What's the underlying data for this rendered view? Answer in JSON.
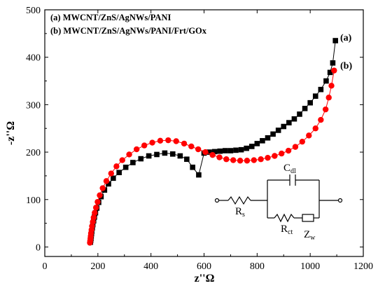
{
  "chart_data": {
    "type": "scatter",
    "xlabel": "z''Ω",
    "ylabel": "-z''Ω",
    "xlim": [
      0,
      1200
    ],
    "ylim": [
      -20,
      500
    ],
    "xticks": [
      "0",
      "200",
      "400",
      "600",
      "800",
      "1000",
      "1200"
    ],
    "yticks": [
      "0",
      "100",
      "200",
      "300",
      "400",
      "500"
    ],
    "legend": {
      "placement": "top-left",
      "entries": [
        "(a) MWCNT/ZnS/AgNWs/PANI",
        "(b) MWCNT/ZnS/AgNWs/PANI/Frt/GOx"
      ]
    },
    "series": [
      {
        "name": "(a)",
        "label": "(a)",
        "color": "#000000",
        "marker": "square",
        "points": [
          [
            172,
            10
          ],
          [
            173,
            14
          ],
          [
            174,
            18
          ],
          [
            175,
            23
          ],
          [
            176,
            28
          ],
          [
            177,
            33
          ],
          [
            179,
            40
          ],
          [
            181,
            47
          ],
          [
            184,
            55
          ],
          [
            187,
            63
          ],
          [
            191,
            72
          ],
          [
            196,
            82
          ],
          [
            203,
            94
          ],
          [
            212,
            106
          ],
          [
            225,
            120
          ],
          [
            240,
            133
          ],
          [
            258,
            145
          ],
          [
            280,
            157
          ],
          [
            305,
            168
          ],
          [
            332,
            178
          ],
          [
            362,
            186
          ],
          [
            392,
            192
          ],
          [
            422,
            195
          ],
          [
            452,
            198
          ],
          [
            482,
            196
          ],
          [
            510,
            192
          ],
          [
            535,
            185
          ],
          [
            557,
            168
          ],
          [
            580,
            152
          ],
          [
            600,
            198
          ],
          [
            620,
            200
          ],
          [
            640,
            201
          ],
          [
            660,
            202
          ],
          [
            680,
            203
          ],
          [
            700,
            203
          ],
          [
            720,
            204
          ],
          [
            740,
            205
          ],
          [
            760,
            208
          ],
          [
            780,
            212
          ],
          [
            800,
            218
          ],
          [
            820,
            224
          ],
          [
            840,
            230
          ],
          [
            860,
            238
          ],
          [
            880,
            246
          ],
          [
            900,
            254
          ],
          [
            920,
            262
          ],
          [
            940,
            270
          ],
          [
            960,
            280
          ],
          [
            980,
            292
          ],
          [
            1000,
            304
          ],
          [
            1020,
            318
          ],
          [
            1040,
            332
          ],
          [
            1060,
            350
          ],
          [
            1075,
            368
          ],
          [
            1085,
            388
          ],
          [
            1095,
            435
          ]
        ]
      },
      {
        "name": "(b)",
        "label": "(b)",
        "color": "#ff0000",
        "marker": "circle",
        "points": [
          [
            170,
            9
          ],
          [
            171,
            13
          ],
          [
            172,
            18
          ],
          [
            173,
            23
          ],
          [
            174,
            29
          ],
          [
            176,
            36
          ],
          [
            178,
            44
          ],
          [
            181,
            53
          ],
          [
            184,
            62
          ],
          [
            188,
            72
          ],
          [
            193,
            83
          ],
          [
            199,
            95
          ],
          [
            207,
            109
          ],
          [
            218,
            124
          ],
          [
            232,
            139
          ],
          [
            250,
            155
          ],
          [
            270,
            170
          ],
          [
            292,
            183
          ],
          [
            318,
            195
          ],
          [
            346,
            206
          ],
          [
            375,
            214
          ],
          [
            405,
            220
          ],
          [
            435,
            224
          ],
          [
            465,
            225
          ],
          [
            495,
            223
          ],
          [
            525,
            218
          ],
          [
            552,
            212
          ],
          [
            578,
            206
          ],
          [
            605,
            200
          ],
          [
            632,
            194
          ],
          [
            658,
            189
          ],
          [
            684,
            185
          ],
          [
            710,
            183
          ],
          [
            736,
            182
          ],
          [
            762,
            182
          ],
          [
            788,
            183
          ],
          [
            814,
            185
          ],
          [
            840,
            188
          ],
          [
            866,
            192
          ],
          [
            892,
            197
          ],
          [
            918,
            203
          ],
          [
            944,
            211
          ],
          [
            970,
            222
          ],
          [
            995,
            235
          ],
          [
            1020,
            250
          ],
          [
            1040,
            268
          ],
          [
            1058,
            290
          ],
          [
            1070,
            315
          ],
          [
            1080,
            340
          ],
          [
            1090,
            372
          ]
        ]
      }
    ],
    "inset": {
      "type": "equivalent-circuit",
      "labels": {
        "rs": "R",
        "rs_sub": "s",
        "cdl": "C",
        "cdl_sub": "dl",
        "rct": "R",
        "rct_sub": "ct",
        "zw": "Z",
        "zw_sub": "w"
      }
    }
  }
}
